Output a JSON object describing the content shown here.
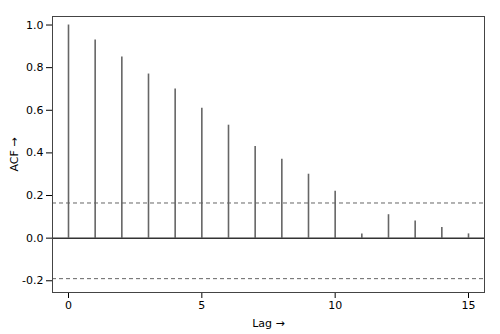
{
  "chart_data": {
    "type": "stem",
    "x": [
      0,
      1,
      2,
      3,
      4,
      5,
      6,
      7,
      8,
      9,
      10,
      11,
      12,
      13,
      14,
      15
    ],
    "values": [
      1.0,
      0.93,
      0.85,
      0.77,
      0.7,
      0.61,
      0.53,
      0.43,
      0.37,
      0.3,
      0.22,
      0.02,
      0.11,
      0.08,
      0.05,
      0.02
    ],
    "color": "#666666",
    "xlabel": "Lag",
    "ylabel": "ACF",
    "xlim": [
      -0.6,
      15.6
    ],
    "ylim": [
      -0.255,
      1.04
    ],
    "xticks": [
      0,
      5,
      10,
      15
    ],
    "yticks": [
      -0.2,
      {
        "value": 0,
        "label": "0.0"
      },
      0.2,
      0.4,
      0.6,
      0.8,
      {
        "value": 1,
        "label": "1.0"
      }
    ],
    "reference_lines": [
      {
        "y": 0,
        "color": "#333333",
        "line_style": "solid"
      },
      {
        "y": 0.165,
        "color": "#666666",
        "line_style": "dashed"
      },
      {
        "y": -0.19,
        "color": "#666666",
        "line_style": "dashed"
      }
    ],
    "grid": false
  }
}
